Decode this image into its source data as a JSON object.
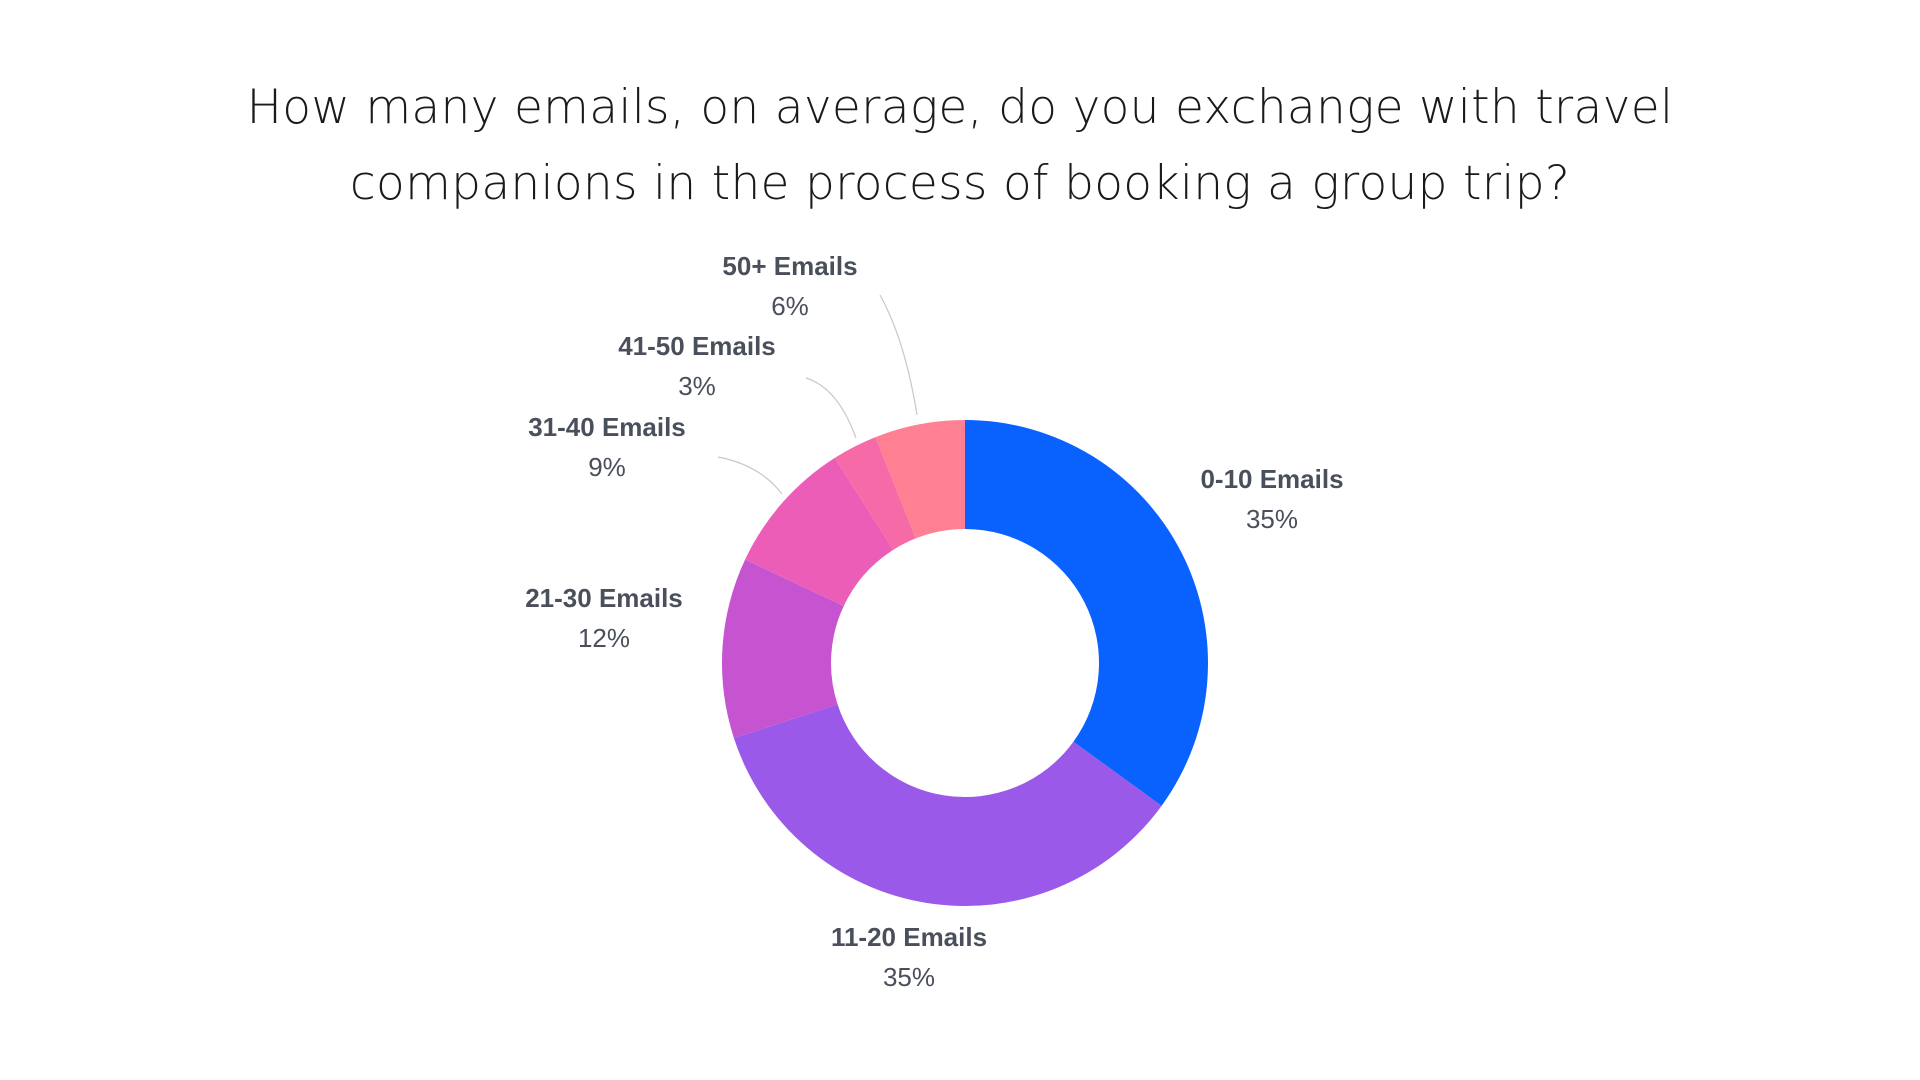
{
  "chart_data": {
    "type": "pie",
    "variant": "donut",
    "title_lines": [
      "How many emails, on average, do you exchange with travel",
      "companions in the process of booking a group trip?"
    ],
    "slices": [
      {
        "label": "0-10 Emails",
        "value": 35,
        "value_label": "35%",
        "color": "#0a62fe"
      },
      {
        "label": "11-20 Emails",
        "value": 35,
        "value_label": "35%",
        "color": "#9a59e8"
      },
      {
        "label": "21-30 Emails",
        "value": 12,
        "value_label": "12%",
        "color": "#c654d1"
      },
      {
        "label": "31-40 Emails",
        "value": 9,
        "value_label": "9%",
        "color": "#eb5db7"
      },
      {
        "label": "41-50 Emails",
        "value": 3,
        "value_label": "3%",
        "color": "#f66aa8"
      },
      {
        "label": "50+ Emails",
        "value": 6,
        "value_label": "6%",
        "color": "#ff8092"
      }
    ],
    "start_angle": "12 o'clock",
    "direction": "clockwise",
    "legend": "none",
    "grid": false
  }
}
